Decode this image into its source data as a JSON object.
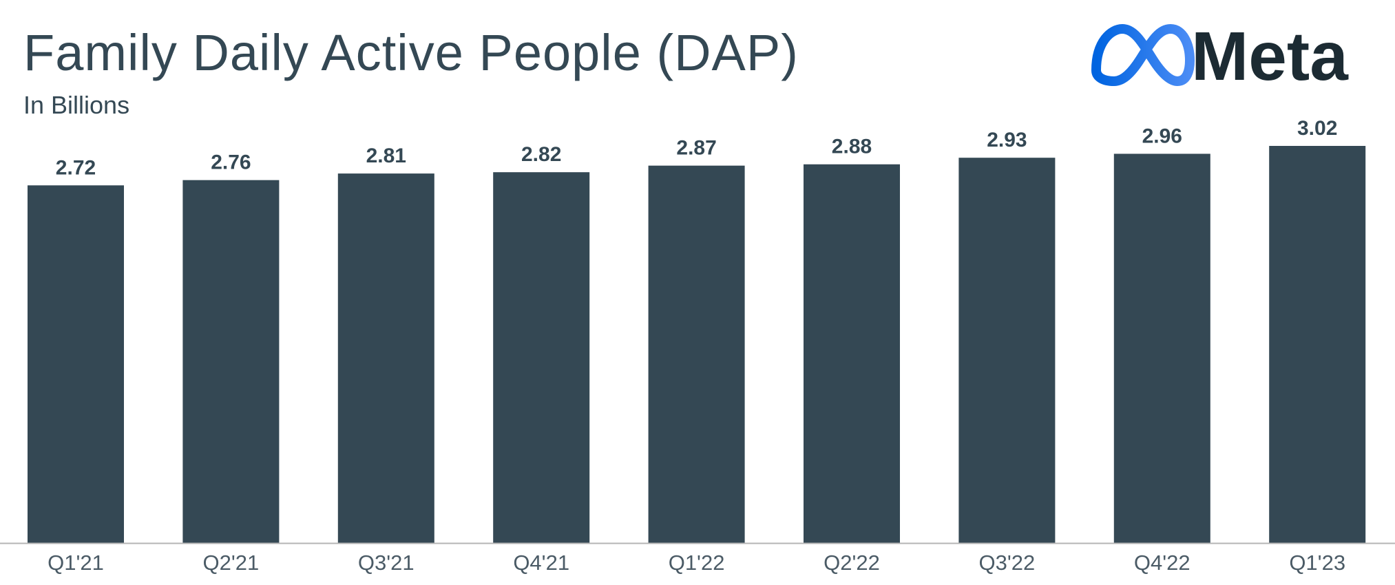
{
  "header": {
    "title": "Family Daily Active People (DAP)",
    "subtitle": "In Billions"
  },
  "logo": {
    "text": "Meta",
    "icon": "meta-infinity-icon",
    "icon_colors": [
      "#0064e0",
      "#4b8cf5"
    ]
  },
  "colors": {
    "bar": "#344854",
    "text": "#344854",
    "axis": "#b5b5b5"
  },
  "chart_data": {
    "type": "bar",
    "title": "Family Daily Active People (DAP)",
    "subtitle": "In Billions",
    "categories": [
      "Q1'21",
      "Q2'21",
      "Q3'21",
      "Q4'21",
      "Q1'22",
      "Q2'22",
      "Q3'22",
      "Q4'22",
      "Q1'23"
    ],
    "values": [
      2.72,
      2.76,
      2.81,
      2.82,
      2.87,
      2.88,
      2.93,
      2.96,
      3.02
    ],
    "value_labels": [
      "2.72",
      "2.76",
      "2.81",
      "2.82",
      "2.87",
      "2.88",
      "2.93",
      "2.96",
      "3.02"
    ],
    "ylim": [
      0,
      3.02
    ],
    "grid": false,
    "legend": "none"
  }
}
